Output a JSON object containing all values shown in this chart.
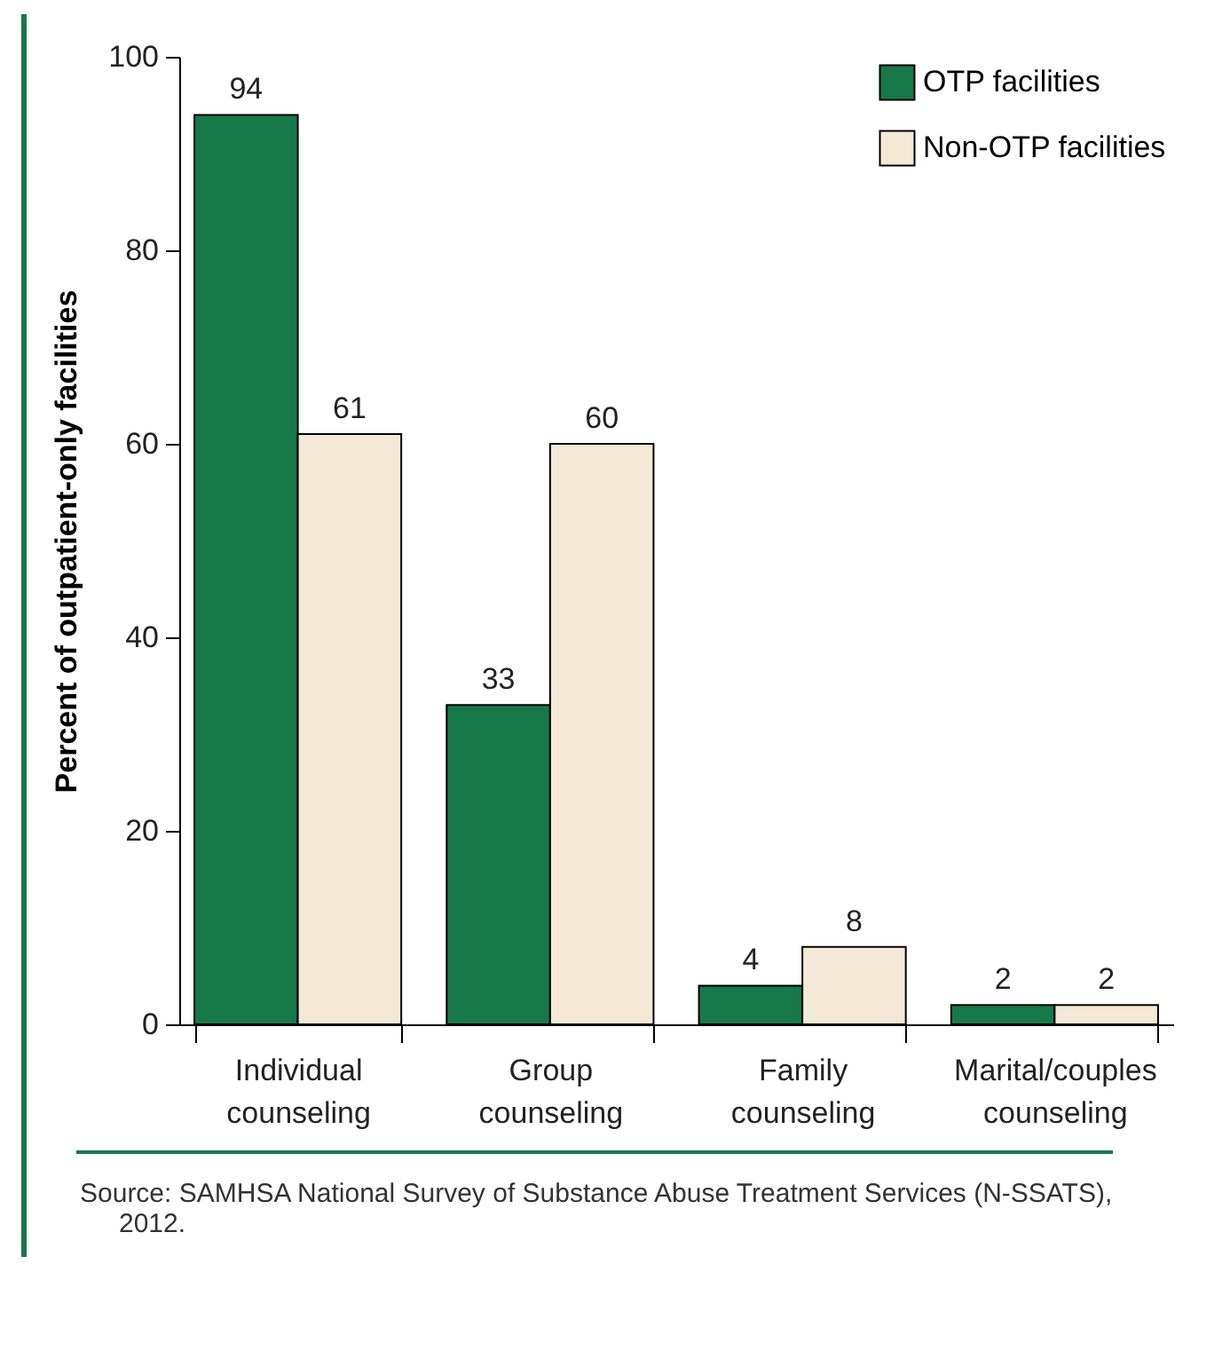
{
  "chart_data": {
    "type": "bar",
    "ylabel": "Percent of outpatient-only facilities",
    "categories": [
      "Individual counseling",
      "Group counseling",
      "Family counseling",
      "Marital/couples counseling"
    ],
    "series": [
      {
        "name": "OTP facilities",
        "color": "#17784a",
        "values": [
          94,
          33,
          4,
          2
        ]
      },
      {
        "name": "Non-OTP facilities",
        "color": "#f3e9d6",
        "values": [
          61,
          60,
          8,
          2
        ]
      }
    ],
    "ylim": [
      0,
      100
    ],
    "yticks": [
      0,
      20,
      40,
      60,
      80,
      100
    ],
    "grid": false,
    "legend": "top right",
    "data_labels": true,
    "annotations": [
      "Source: SAMHSA National Survey of Substance Abuse Treatment Services (N-SSATS), 2012."
    ]
  }
}
